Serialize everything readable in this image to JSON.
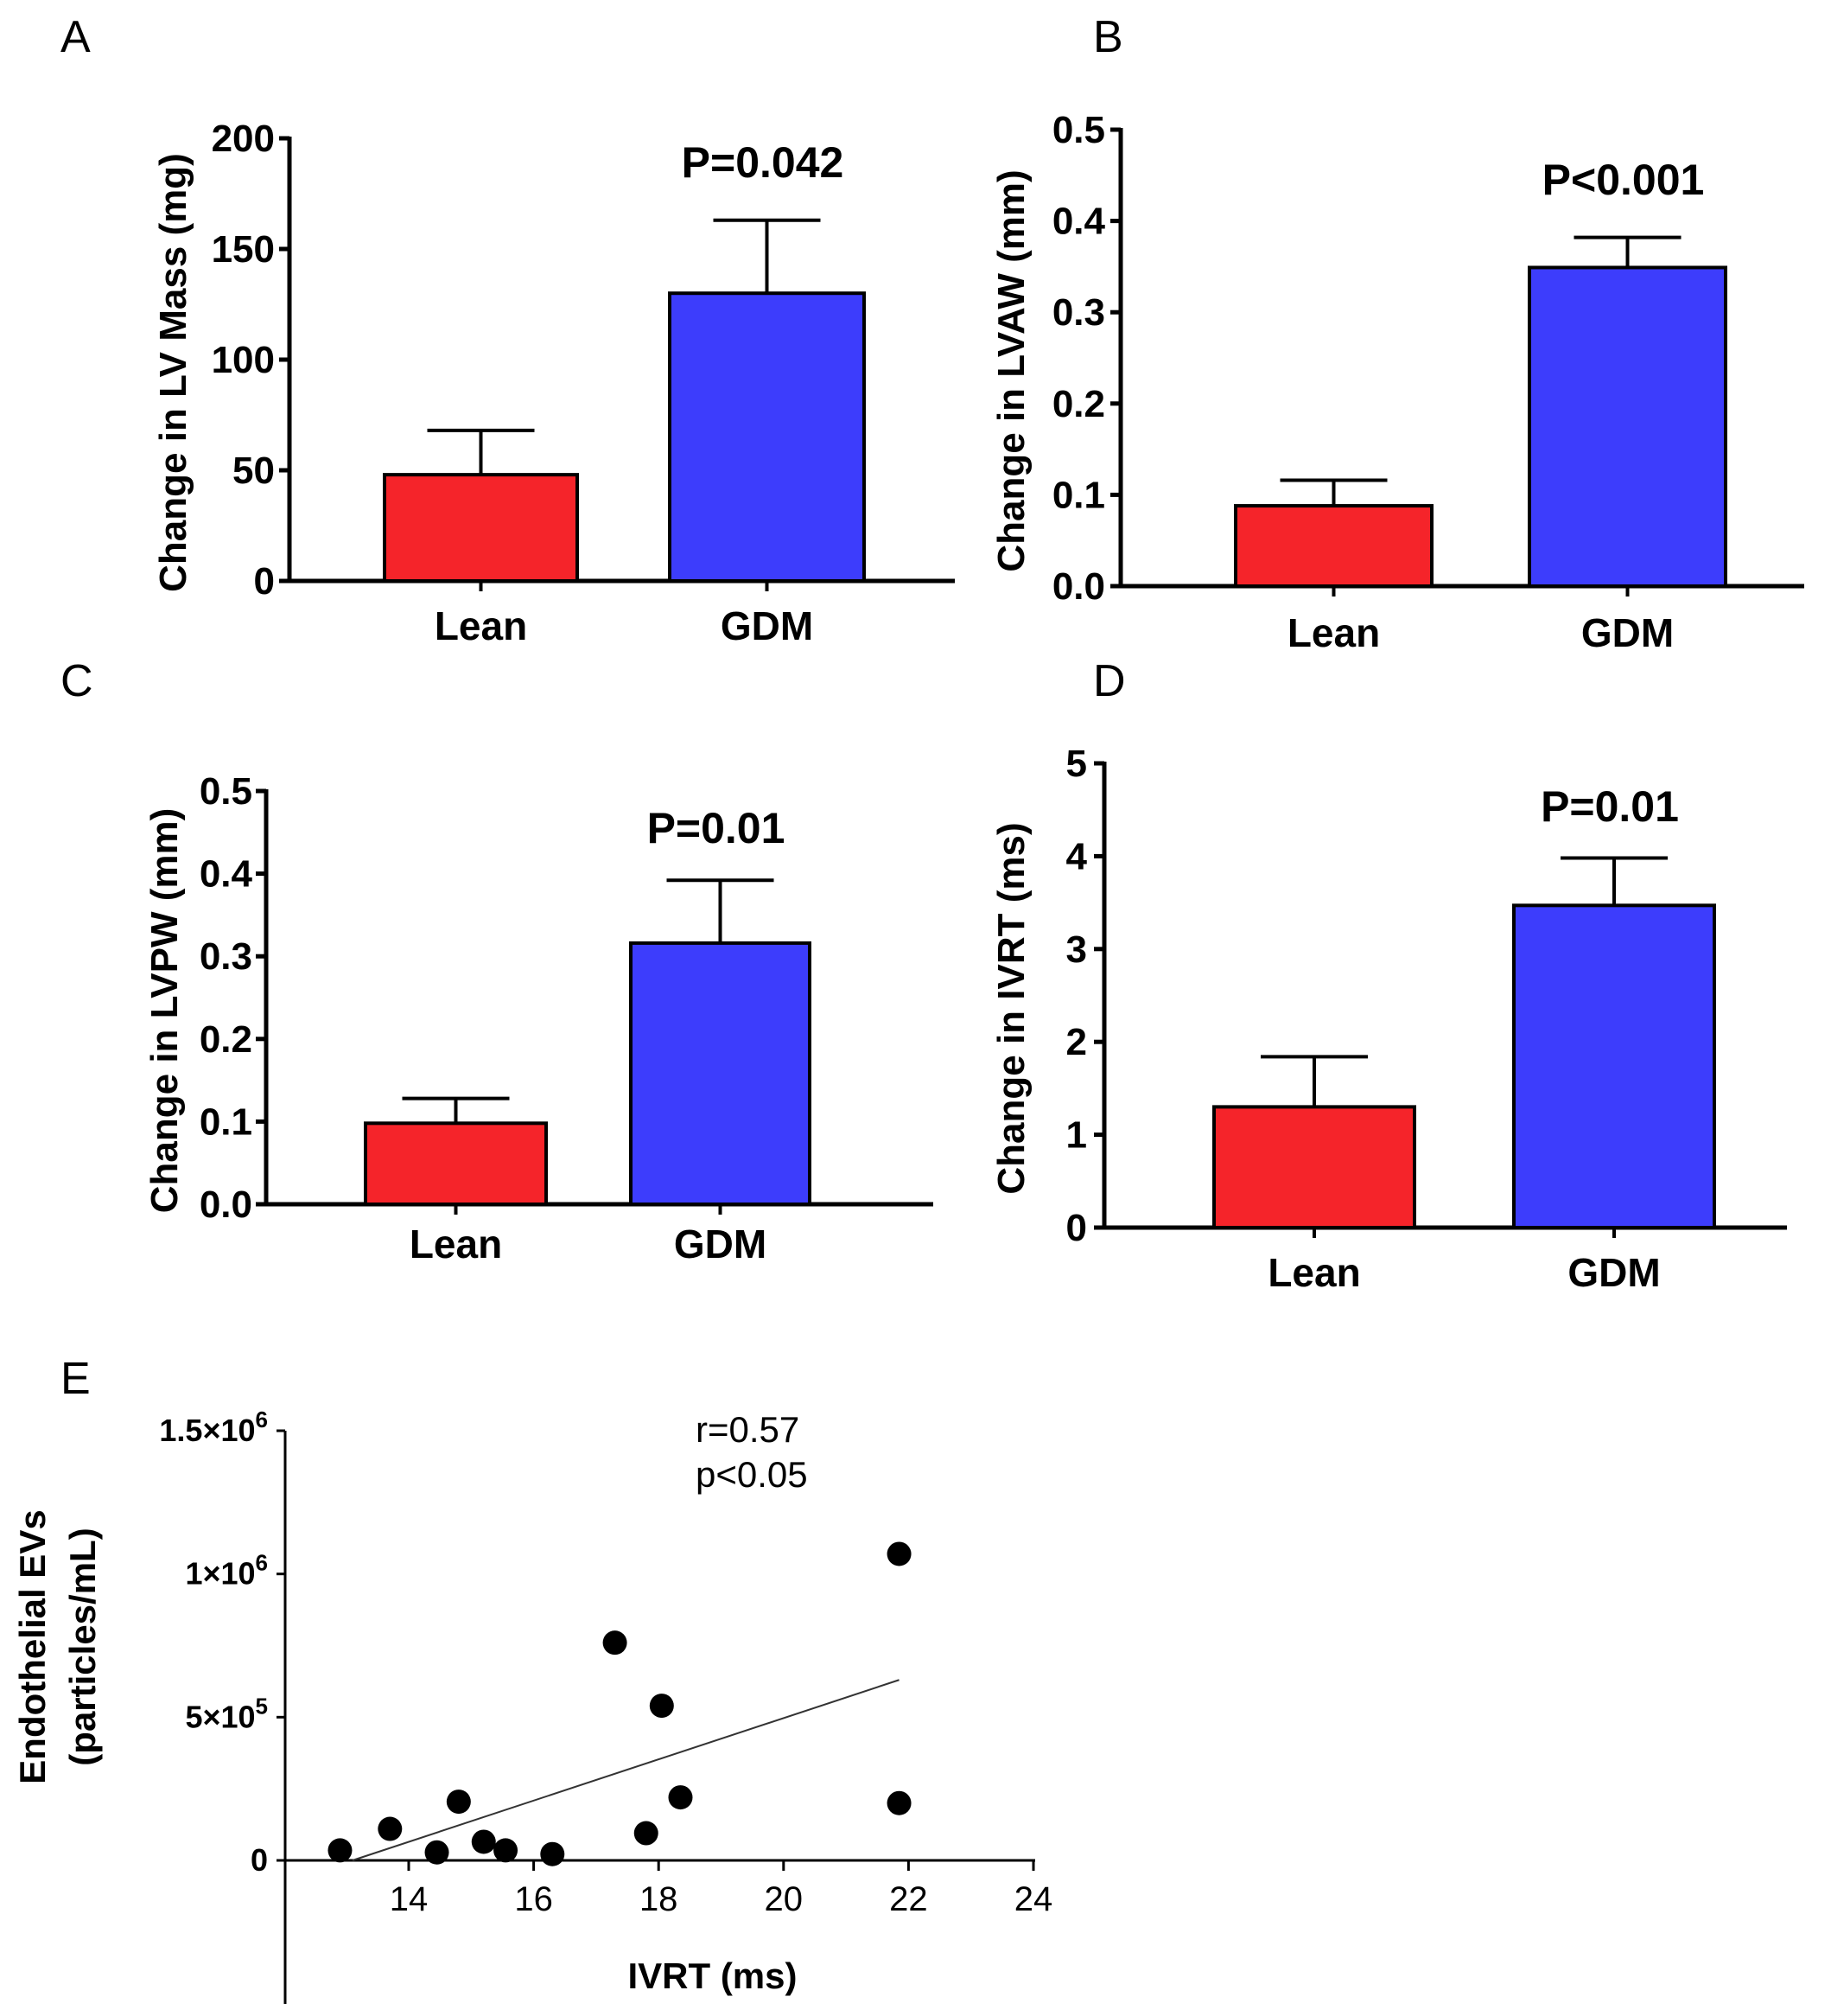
{
  "chart_data": [
    {
      "panel": "A",
      "type": "bar",
      "categories": [
        "Lean",
        "GDM"
      ],
      "values": [
        48,
        130
      ],
      "errors": [
        20,
        33
      ],
      "ylabel": "Change in LV Mass (mg)",
      "ylim": [
        0,
        200
      ],
      "yticks": [
        "0",
        "50",
        "100",
        "150",
        "200"
      ],
      "annotation": "P=0.042",
      "colors": [
        "#f5242a",
        "#3d3dfc"
      ]
    },
    {
      "panel": "B",
      "type": "bar",
      "categories": [
        "Lean",
        "GDM"
      ],
      "values": [
        0.088,
        0.349
      ],
      "errors": [
        0.028,
        0.033
      ],
      "ylabel": "Change in LVAW (mm)",
      "ylim": [
        0,
        0.5
      ],
      "yticks": [
        "0.0",
        "0.1",
        "0.2",
        "0.3",
        "0.4",
        "0.5"
      ],
      "annotation": "P<0.001",
      "colors": [
        "#f5242a",
        "#3d3dfc"
      ]
    },
    {
      "panel": "C",
      "type": "bar",
      "categories": [
        "Lean",
        "GDM"
      ],
      "values": [
        0.098,
        0.316
      ],
      "errors": [
        0.03,
        0.076
      ],
      "ylabel": "Change in LVPW (mm)",
      "ylim": [
        0,
        0.5
      ],
      "yticks": [
        "0.0",
        "0.1",
        "0.2",
        "0.3",
        "0.4",
        "0.5"
      ],
      "annotation": "P=0.01",
      "colors": [
        "#f5242a",
        "#3d3dfc"
      ]
    },
    {
      "panel": "D",
      "type": "bar",
      "categories": [
        "Lean",
        "GDM"
      ],
      "values": [
        1.3,
        3.47
      ],
      "errors": [
        0.54,
        0.51
      ],
      "ylabel": "Change in IVRT (ms)",
      "ylim": [
        0,
        5
      ],
      "yticks": [
        "0",
        "1",
        "2",
        "3",
        "4",
        "5"
      ],
      "annotation": "P=0.01",
      "colors": [
        "#f5242a",
        "#3d3dfc"
      ]
    },
    {
      "panel": "E",
      "type": "scatter",
      "xlabel": "IVRT (ms)",
      "ylabel_lines": [
        "Endothelial EVs",
        "(particles/mL)"
      ],
      "xlim": [
        10,
        24
      ],
      "ylim": [
        -500000,
        1500000
      ],
      "xticks": [
        "14",
        "16",
        "18",
        "20",
        "22",
        "24"
      ],
      "yticks": [
        {
          "mant": "0",
          "exp": ""
        },
        {
          "mant": "5×10",
          "exp": "5"
        },
        {
          "mant": "1×10",
          "exp": "6"
        },
        {
          "mant": "1.5×10",
          "exp": "6"
        }
      ],
      "points": [
        {
          "x": 12.9,
          "y": 35000
        },
        {
          "x": 13.7,
          "y": 110000
        },
        {
          "x": 14.45,
          "y": 28000
        },
        {
          "x": 14.8,
          "y": 205000
        },
        {
          "x": 15.2,
          "y": 65000
        },
        {
          "x": 15.55,
          "y": 35000
        },
        {
          "x": 16.3,
          "y": 22000
        },
        {
          "x": 17.3,
          "y": 760000
        },
        {
          "x": 17.8,
          "y": 95000
        },
        {
          "x": 18.05,
          "y": 540000
        },
        {
          "x": 18.35,
          "y": 220000
        },
        {
          "x": 21.85,
          "y": 1070000
        },
        {
          "x": 21.85,
          "y": 200000
        }
      ],
      "fit_line": [
        {
          "x": 13.1,
          "y": 0
        },
        {
          "x": 21.85,
          "y": 630000
        }
      ],
      "annotation": [
        "r=0.57",
        "p<0.05"
      ]
    }
  ]
}
